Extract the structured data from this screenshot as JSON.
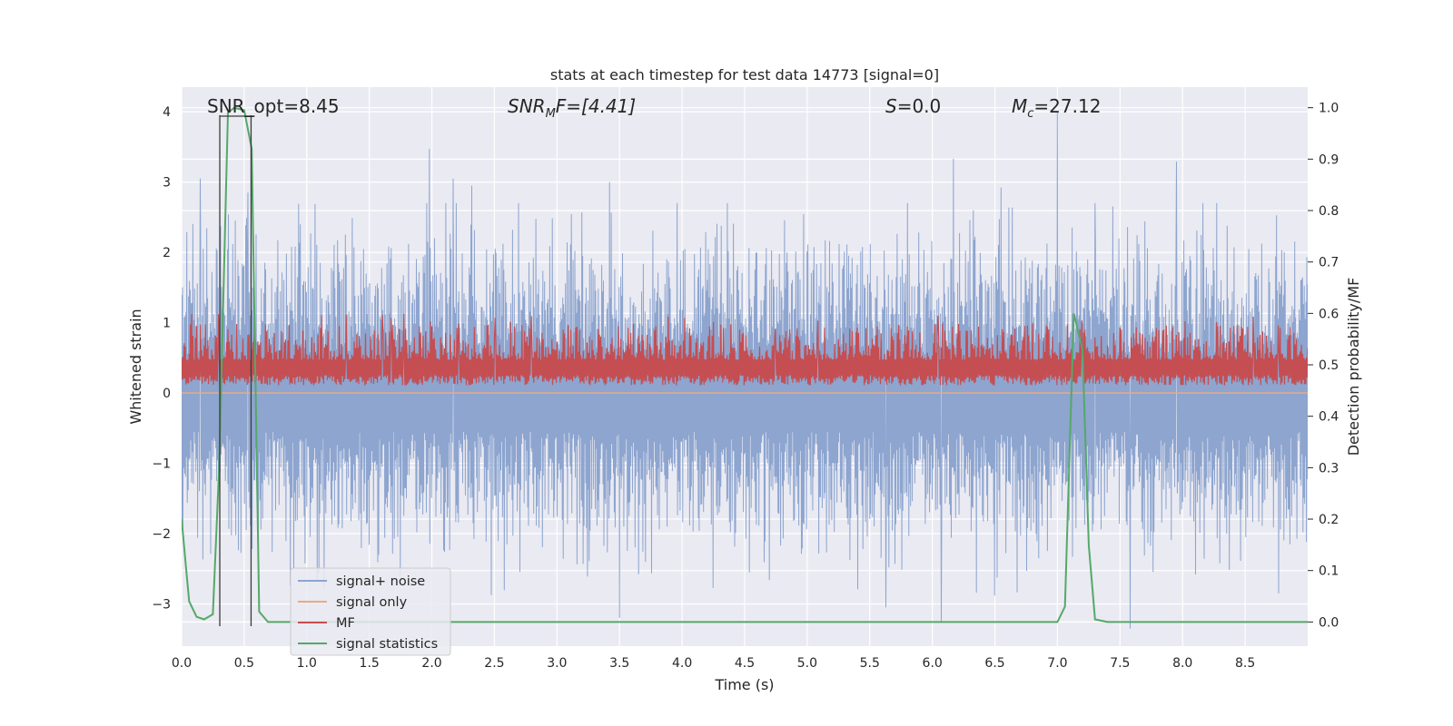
{
  "chart_data": {
    "type": "line",
    "title": "stats at each timestep for test data 14773 [signal=0]",
    "xlabel": "Time (s)",
    "ylabel": "Whitened strain",
    "ylabel_right": "Detection probability/MF",
    "xlim": [
      0,
      9.0
    ],
    "ylim": [
      -3.6,
      4.35
    ],
    "ylim_right": [
      -0.047,
      1.04
    ],
    "x_ticks": [
      0.0,
      0.5,
      1.0,
      1.5,
      2.0,
      2.5,
      3.0,
      3.5,
      4.0,
      4.5,
      5.0,
      5.5,
      6.0,
      6.5,
      7.0,
      7.5,
      8.0,
      8.5
    ],
    "x_tick_labels": [
      "0.0",
      "0.5",
      "1.0",
      "1.5",
      "2.0",
      "2.5",
      "3.0",
      "3.5",
      "4.0",
      "4.5",
      "5.0",
      "5.5",
      "6.0",
      "6.5",
      "7.0",
      "7.5",
      "8.0",
      "8.5"
    ],
    "y_ticks": [
      4,
      3,
      2,
      1,
      0,
      -1,
      -2,
      -3
    ],
    "y_tick_labels": [
      "4",
      "3",
      "2",
      "1",
      "0",
      "−1",
      "−2",
      "−3"
    ],
    "y_right_ticks": [
      1.0,
      0.9,
      0.8,
      0.7,
      0.6,
      0.5,
      0.4,
      0.3,
      0.2,
      0.1,
      0.0
    ],
    "y_right_tick_labels": [
      "1.0",
      "0.9",
      "0.8",
      "0.7",
      "0.6",
      "0.5",
      "0.4",
      "0.3",
      "0.2",
      "0.1",
      "0.0"
    ],
    "grid": true,
    "legend_position": "lower-left",
    "annotations": {
      "snr_opt": {
        "prefix": "SNR_opt=",
        "value": "8.45"
      },
      "snr_mf": {
        "main": "SNR",
        "sub": "M",
        "rest": "F=[4.41]"
      },
      "s_stat": {
        "main": "S",
        "rest": "=0.0"
      },
      "mc": {
        "main": "M",
        "sub": "c",
        "rest": "=27.12"
      }
    },
    "markers_x": [
      0.305,
      0.555
    ],
    "series": [
      {
        "name": "signal+ noise",
        "color": "#8da5cf",
        "axis": "left",
        "noise_range": [
          -3.4,
          4.0
        ],
        "peaks": [
          [
            0.15,
            3.05
          ],
          [
            1.98,
            3.47
          ],
          [
            3.42,
            3.0
          ],
          [
            7.0,
            4.0
          ],
          [
            6.17,
            3.33
          ],
          [
            7.95,
            3.29
          ],
          [
            2.17,
            3.05
          ],
          [
            2.32,
            2.95
          ],
          [
            6.55,
            2.92
          ],
          [
            0.53,
            2.85
          ],
          [
            5.8,
            2.7
          ],
          [
            7.3,
            2.7
          ],
          [
            3.5,
            -3.2
          ],
          [
            7.58,
            -3.35
          ],
          [
            6.07,
            -3.25
          ],
          [
            5.63,
            -3.05
          ]
        ]
      },
      {
        "name": "signal only",
        "color": "#e8a98a",
        "axis": "left",
        "x": [
          0.0,
          9.0
        ],
        "y": [
          0.0,
          0.0
        ]
      },
      {
        "name": "MF",
        "color": "#c44e52",
        "axis": "right",
        "baseline": 0.5,
        "range": [
          0.46,
          0.6
        ]
      },
      {
        "name": "signal statistics",
        "color": "#55a868",
        "axis": "right",
        "x": [
          0.0,
          0.03,
          0.06,
          0.12,
          0.18,
          0.25,
          0.3,
          0.37,
          0.42,
          0.5,
          0.56,
          0.62,
          0.69,
          1.0,
          3.0,
          7.0,
          7.06,
          7.13,
          7.2,
          7.25,
          7.3,
          7.4,
          8.0,
          9.0
        ],
        "y": [
          0.2,
          0.12,
          0.04,
          0.01,
          0.005,
          0.015,
          0.3,
          0.99,
          1.0,
          0.995,
          0.92,
          0.02,
          0.0,
          0.0,
          0.0,
          0.0,
          0.03,
          0.6,
          0.53,
          0.15,
          0.005,
          0.0,
          0.0,
          0.0
        ]
      }
    ]
  }
}
